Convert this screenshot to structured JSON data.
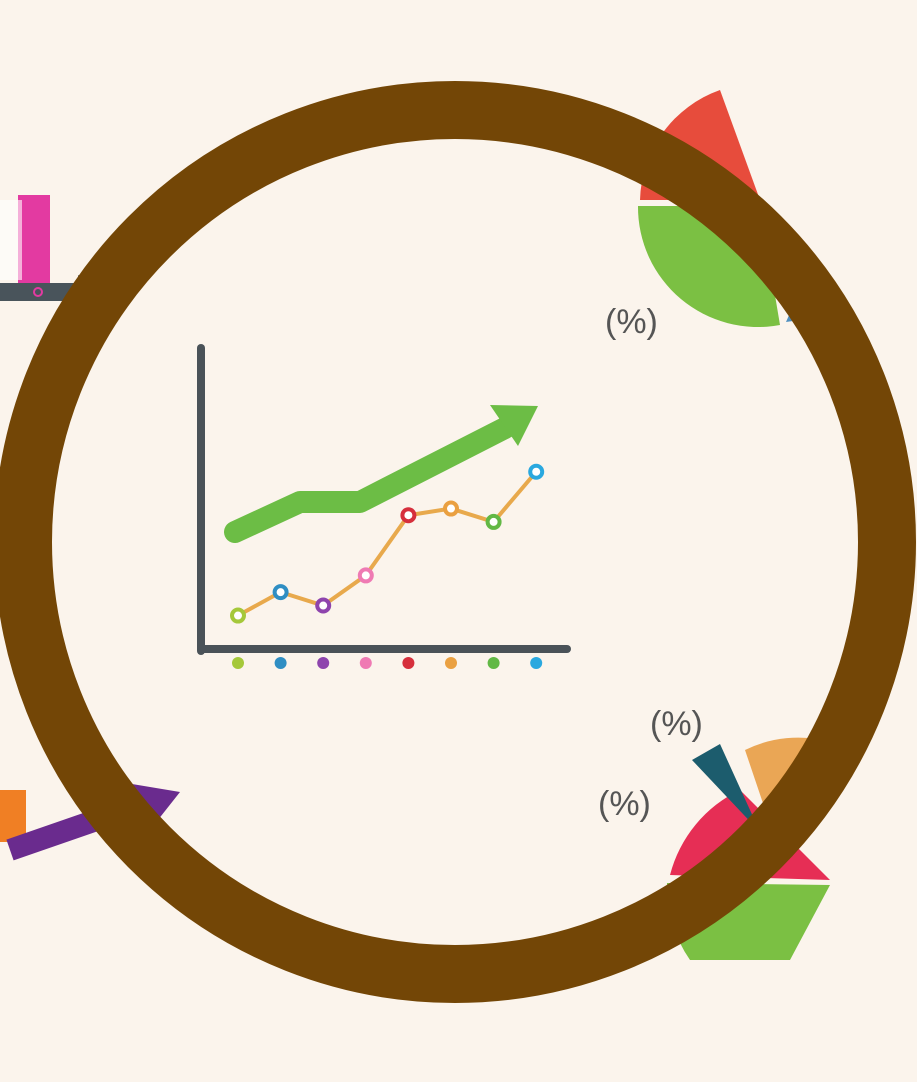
{
  "colors": {
    "background": "#fbf4ec",
    "ring": "#734606",
    "axis": "#4a5258",
    "trend_arrow": "#6cbd45",
    "line": "#e8a94c",
    "arrow_purple": "#6a2b8e",
    "arrow_dark": "#49545b",
    "magenta": "#e33aa1",
    "orange": "#f07f24",
    "pie_red": "#e74c3c",
    "pie_green": "#7bc043",
    "pie_blue": "#4f8fbf",
    "pie_pink_red": "#e62e55",
    "pie_teal": "#1c5c6d",
    "pie_orange": "#eaa655"
  },
  "labels": {
    "pct_top_cut": "(%)",
    "pct_top": "(%)",
    "pct_bottom_a": "(%)",
    "pct_bottom_b": "(%)"
  },
  "chart_data": {
    "type": "line",
    "title": "",
    "xlabel": "",
    "ylabel": "",
    "x": [
      1,
      2,
      3,
      4,
      5,
      6,
      7,
      8
    ],
    "series": [
      {
        "values": [
          1.0,
          1.7,
          1.3,
          2.2,
          4.0,
          4.2,
          3.8,
          5.3
        ],
        "point_colors": [
          "#a5c83a",
          "#2f8ec3",
          "#8e44ad",
          "#ef7ab3",
          "#d62f3c",
          "#eaa041",
          "#62b845",
          "#2aa8df"
        ]
      }
    ],
    "tick_dot_colors": [
      "#a5c83a",
      "#2f8ec3",
      "#8e44ad",
      "#ef7ab3",
      "#d62f3c",
      "#eaa041",
      "#62b845",
      "#2aa8df"
    ],
    "ylim": [
      0,
      9
    ],
    "grid": false
  }
}
